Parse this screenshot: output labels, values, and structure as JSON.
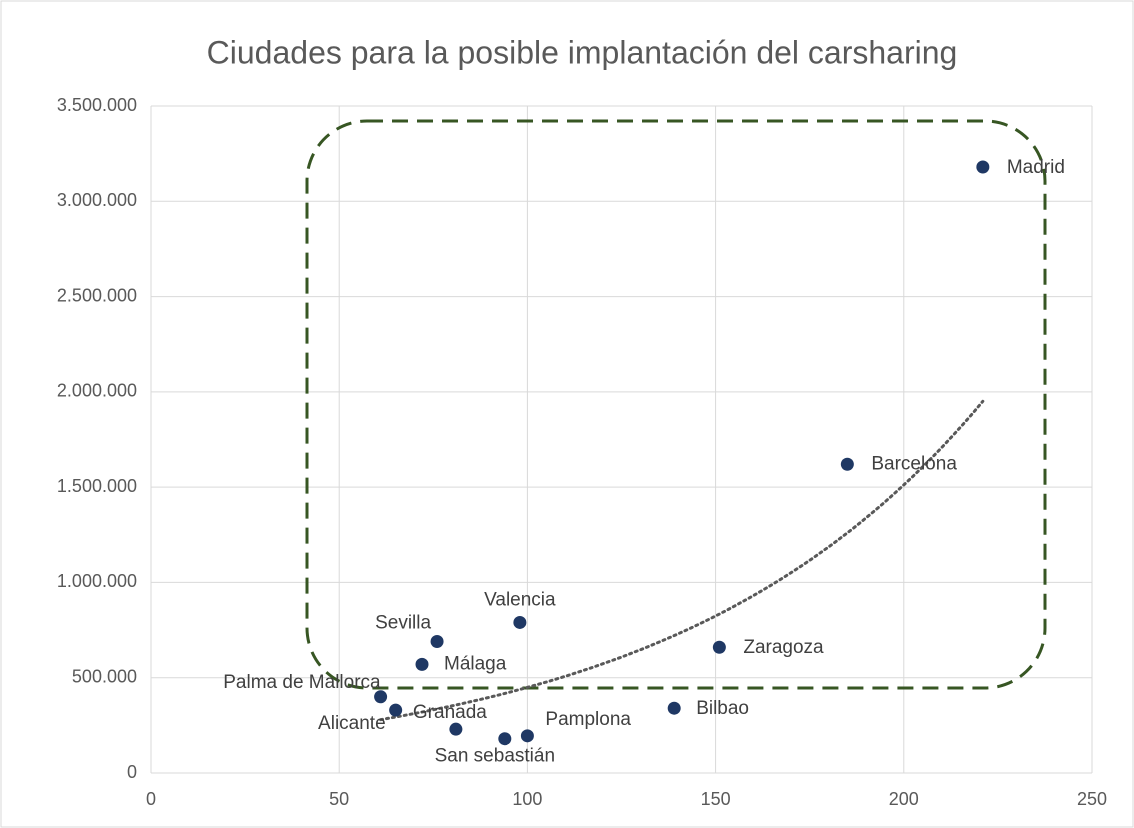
{
  "chart_data": {
    "type": "scatter",
    "title": "Ciudades para la posible implantación del carsharing",
    "labels": [
      "Madrid",
      "Barcelona",
      "Zaragoza",
      "Valencia",
      "Sevilla",
      "Málaga",
      "Palma de Mallorca",
      "Alicante",
      "Granada",
      "San sebastián",
      "Pamplona",
      "Bilbao"
    ],
    "x": [
      221,
      185,
      151,
      98,
      76,
      72,
      61,
      65,
      81,
      94,
      100,
      139
    ],
    "values": [
      3180000,
      1620000,
      660000,
      790000,
      690000,
      570000,
      400000,
      330000,
      230000,
      180000,
      195000,
      340000
    ],
    "color": "#1f3864",
    "trendline": "exponential",
    "trendline_color": "#595959",
    "xlim": [
      0,
      250
    ],
    "xticks": [
      0,
      50,
      100,
      150,
      200,
      250
    ],
    "ylim": [
      0,
      3500000
    ],
    "yticks": [
      0,
      {
        "value": 500000,
        "label": "500.000"
      },
      {
        "value": 1000000,
        "label": "1.000.000"
      },
      {
        "value": 1500000,
        "label": "1.500.000"
      },
      {
        "value": 2000000,
        "label": "2.000.000"
      },
      {
        "value": 2500000,
        "label": "2.500.000"
      },
      {
        "value": 3000000,
        "label": "3.000.000"
      },
      {
        "value": 3500000,
        "label": "3.500.000"
      }
    ],
    "grid": true
  }
}
